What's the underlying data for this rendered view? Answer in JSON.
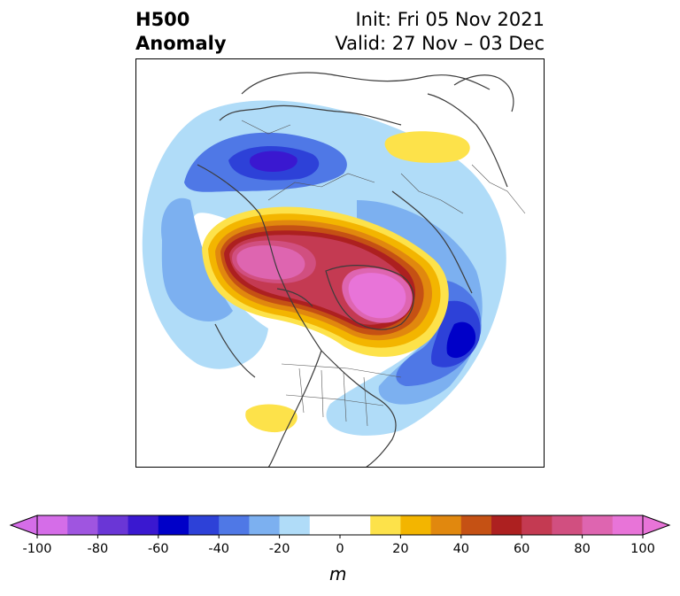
{
  "title": {
    "left_line1": "H500",
    "left_line2": "Anomaly",
    "right_line1": "Init: Fri 05 Nov 2021",
    "right_line2": "Valid: 27 Nov – 03 Dec"
  },
  "colorbar": {
    "ticks": [
      "-100",
      "-80",
      "-60",
      "-40",
      "-20",
      "0",
      "20",
      "40",
      "60",
      "80",
      "100"
    ],
    "unit": "m",
    "colors": [
      "#d56de8",
      "#9f55e0",
      "#6a36d6",
      "#3a18d0",
      "#0000c8",
      "#2d41d8",
      "#4f78e6",
      "#7cb0f0",
      "#b0dcf8",
      "#ffffff",
      "#ffffff",
      "#fde24a",
      "#f3b500",
      "#e1880e",
      "#c55114",
      "#ad2020",
      "#c43a52",
      "#d14f80",
      "#de65b0",
      "#e874d8"
    ]
  }
}
